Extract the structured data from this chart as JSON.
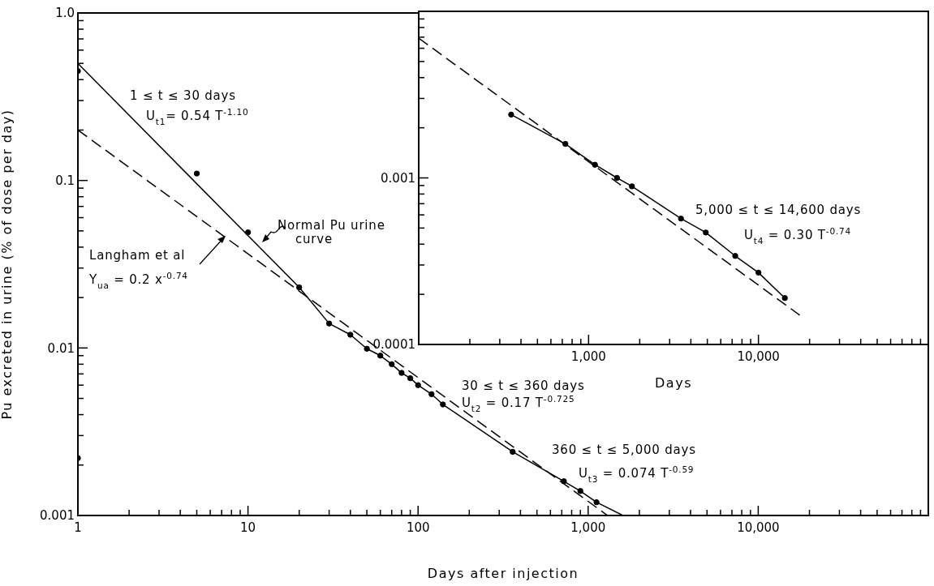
{
  "chart_data": [
    {
      "type": "line",
      "xlabel": "Days after injection",
      "ylabel": "Pu excreted in urine  (% of dose per day)",
      "log": "xy",
      "xlim": [
        1,
        100000
      ],
      "ylim": [
        0.001,
        1
      ],
      "xticks": [
        1,
        {
          "value": 2,
          "label": null
        },
        {
          "value": 3,
          "label": null
        },
        {
          "value": 4,
          "label": null
        },
        {
          "value": 5,
          "label": null
        },
        {
          "value": 6,
          "label": null
        },
        {
          "value": 7,
          "label": null
        },
        {
          "value": 8,
          "label": null
        },
        {
          "value": 9,
          "label": null
        },
        10,
        {
          "value": 20,
          "label": null
        },
        {
          "value": 30,
          "label": null
        },
        {
          "value": 40,
          "label": null
        },
        {
          "value": 50,
          "label": null
        },
        {
          "value": 60,
          "label": null
        },
        {
          "value": 70,
          "label": null
        },
        {
          "value": 80,
          "label": null
        },
        {
          "value": 90,
          "label": null
        },
        100,
        {
          "value": 200,
          "label": null
        },
        {
          "value": 300,
          "label": null
        },
        {
          "value": 400,
          "label": null
        },
        {
          "value": 500,
          "label": null
        },
        {
          "value": 600,
          "label": null
        },
        {
          "value": 700,
          "label": null
        },
        {
          "value": 800,
          "label": null
        },
        {
          "value": 900,
          "label": null
        },
        {
          "value": 1000,
          "label": "1,000"
        },
        {
          "value": 2000,
          "label": null
        },
        {
          "value": 3000,
          "label": null
        },
        {
          "value": 4000,
          "label": null
        },
        {
          "value": 5000,
          "label": null
        },
        {
          "value": 6000,
          "label": null
        },
        {
          "value": 7000,
          "label": null
        },
        {
          "value": 8000,
          "label": null
        },
        {
          "value": 9000,
          "label": null
        },
        {
          "value": 10000,
          "label": "10,000"
        },
        {
          "value": 20000,
          "label": null
        },
        {
          "value": 30000,
          "label": null
        },
        {
          "value": 40000,
          "label": null
        },
        {
          "value": 50000,
          "label": null
        },
        {
          "value": 60000,
          "label": null
        },
        {
          "value": 70000,
          "label": null
        },
        {
          "value": 80000,
          "label": null
        },
        {
          "value": 90000,
          "label": null
        }
      ],
      "yticks": [
        0.001,
        {
          "value": 0.002,
          "label": null
        },
        {
          "value": 0.003,
          "label": null
        },
        {
          "value": 0.004,
          "label": null
        },
        {
          "value": 0.005,
          "label": null
        },
        {
          "value": 0.006,
          "label": null
        },
        {
          "value": 0.007,
          "label": null
        },
        {
          "value": 0.008,
          "label": null
        },
        {
          "value": 0.009,
          "label": null
        },
        0.01,
        {
          "value": 0.02,
          "label": null
        },
        {
          "value": 0.03,
          "label": null
        },
        {
          "value": 0.04,
          "label": null
        },
        {
          "value": 0.05,
          "label": null
        },
        {
          "value": 0.06,
          "label": null
        },
        {
          "value": 0.07,
          "label": null
        },
        {
          "value": 0.08,
          "label": null
        },
        {
          "value": 0.09,
          "label": null
        },
        0.1,
        {
          "value": 0.2,
          "label": null
        },
        {
          "value": 0.3,
          "label": null
        },
        {
          "value": 0.4,
          "label": null
        },
        {
          "value": 0.5,
          "label": null
        },
        {
          "value": 0.6,
          "label": null
        },
        {
          "value": 0.7,
          "label": null
        },
        {
          "value": 0.8,
          "label": null
        },
        {
          "value": 0.9,
          "label": null
        },
        {
          "value": 1,
          "label": "1.0"
        }
      ],
      "series": [
        {
          "type": "line",
          "color": "#000000",
          "line_style": "solid",
          "marker": "none",
          "x": [
            1,
            20,
            30,
            40,
            50,
            60,
            70,
            80,
            90,
            100,
            120,
            140,
            360,
            720,
            900,
            1120,
            1600
          ],
          "values": [
            0.5,
            0.023,
            0.014,
            0.012,
            0.0099,
            0.009,
            0.008,
            0.0071,
            0.0066,
            0.006,
            0.0053,
            0.0046,
            0.0024,
            0.0016,
            0.0014,
            0.0012,
            0.001
          ]
        },
        {
          "type": "line",
          "color": "#000000",
          "line_style": "dashed",
          "marker": "none",
          "x": [
            1,
            1300
          ],
          "values": [
            0.2,
            0.001
          ]
        },
        {
          "type": "scatter",
          "color": "#000000",
          "marker": "circle",
          "x": [
            1,
            1,
            5,
            10,
            20,
            30,
            40,
            50,
            60,
            70,
            80,
            90,
            100,
            120,
            140,
            360,
            720,
            900,
            1120
          ],
          "values": [
            0.45,
            0.0022,
            0.11,
            0.049,
            0.023,
            0.014,
            0.012,
            0.0099,
            0.009,
            0.008,
            0.0071,
            0.0066,
            0.006,
            0.0053,
            0.0046,
            0.0024,
            0.0016,
            0.0014,
            0.0012
          ]
        }
      ],
      "annotations": [
        "1 ≤ t ≤ 30 days",
        "U$_{t1}$= 0.54 T$^{-1.10}$",
        "Langham et al",
        "Y$_{ua}$ = 0.2 x$^{-0.74}$",
        "Normal Pu urine curve",
        "30 ≤ t ≤ 360 days",
        "U$_{t2}$ = 0.17 T$^{-0.725}$",
        "360 ≤ t ≤ 5,000 days",
        "U$_{t3}$ = 0.074 T$^{-0.59}$"
      ]
    },
    {
      "type": "line",
      "xlabel": "Days",
      "log": "xy",
      "xlim": [
        100,
        100000
      ],
      "ylim": [
        0.0001,
        0.01
      ],
      "xticks": [
        {
          "value": 200,
          "label": null
        },
        {
          "value": 300,
          "label": null
        },
        {
          "value": 400,
          "label": null
        },
        {
          "value": 500,
          "label": null
        },
        {
          "value": 600,
          "label": null
        },
        {
          "value": 700,
          "label": null
        },
        {
          "value": 800,
          "label": null
        },
        {
          "value": 900,
          "label": null
        },
        {
          "value": 1000,
          "label": "1,000"
        },
        {
          "value": 2000,
          "label": null
        },
        {
          "value": 3000,
          "label": null
        },
        {
          "value": 4000,
          "label": null
        },
        {
          "value": 5000,
          "label": null
        },
        {
          "value": 6000,
          "label": null
        },
        {
          "value": 7000,
          "label": null
        },
        {
          "value": 8000,
          "label": null
        },
        {
          "value": 9000,
          "label": null
        },
        {
          "value": 10000,
          "label": "10,000"
        },
        {
          "value": 20000,
          "label": null
        },
        {
          "value": 30000,
          "label": null
        },
        {
          "value": 40000,
          "label": null
        },
        {
          "value": 50000,
          "label": null
        },
        {
          "value": 60000,
          "label": null
        },
        {
          "value": 70000,
          "label": null
        },
        {
          "value": 80000,
          "label": null
        },
        {
          "value": 90000,
          "label": null
        }
      ],
      "yticks": [
        0.0001,
        {
          "value": 0.0002,
          "label": null
        },
        {
          "value": 0.0003,
          "label": null
        },
        {
          "value": 0.0004,
          "label": null
        },
        {
          "value": 0.0005,
          "label": null
        },
        {
          "value": 0.0006,
          "label": null
        },
        {
          "value": 0.0007,
          "label": null
        },
        {
          "value": 0.0008,
          "label": null
        },
        {
          "value": 0.0009,
          "label": null
        },
        0.001,
        {
          "value": 0.002,
          "label": null
        },
        {
          "value": 0.003,
          "label": null
        },
        {
          "value": 0.004,
          "label": null
        },
        {
          "value": 0.005,
          "label": null
        },
        {
          "value": 0.006,
          "label": null
        },
        {
          "value": 0.007,
          "label": null
        },
        {
          "value": 0.008,
          "label": null
        },
        {
          "value": 0.009,
          "label": null
        }
      ],
      "series": [
        {
          "type": "line",
          "color": "#000000",
          "line_style": "solid",
          "marker": "none",
          "x": [
            350,
            730,
            1090,
            1470,
            1800,
            3500,
            4900,
            7300,
            10000,
            14300
          ],
          "values": [
            0.0024,
            0.0016,
            0.0012,
            0.001,
            0.00089,
            0.00057,
            0.00047,
            0.00034,
            0.00027,
            0.00019
          ]
        },
        {
          "type": "line",
          "color": "#000000",
          "line_style": "dashed",
          "marker": "none",
          "x": [
            100,
            17500
          ],
          "values": [
            0.0069,
            0.00015
          ]
        },
        {
          "type": "scatter",
          "color": "#000000",
          "marker": "circle",
          "x": [
            350,
            730,
            1090,
            1470,
            1800,
            3500,
            4900,
            7300,
            10000,
            14300
          ],
          "values": [
            0.0024,
            0.0016,
            0.0012,
            0.001,
            0.00089,
            0.00057,
            0.00047,
            0.00034,
            0.00027,
            0.00019
          ]
        }
      ],
      "annotations": [
        "5,000 ≤ t ≤ 14,600 days",
        "U$_{t4}$ = 0.30 T$^{-0.74}$"
      ]
    }
  ]
}
